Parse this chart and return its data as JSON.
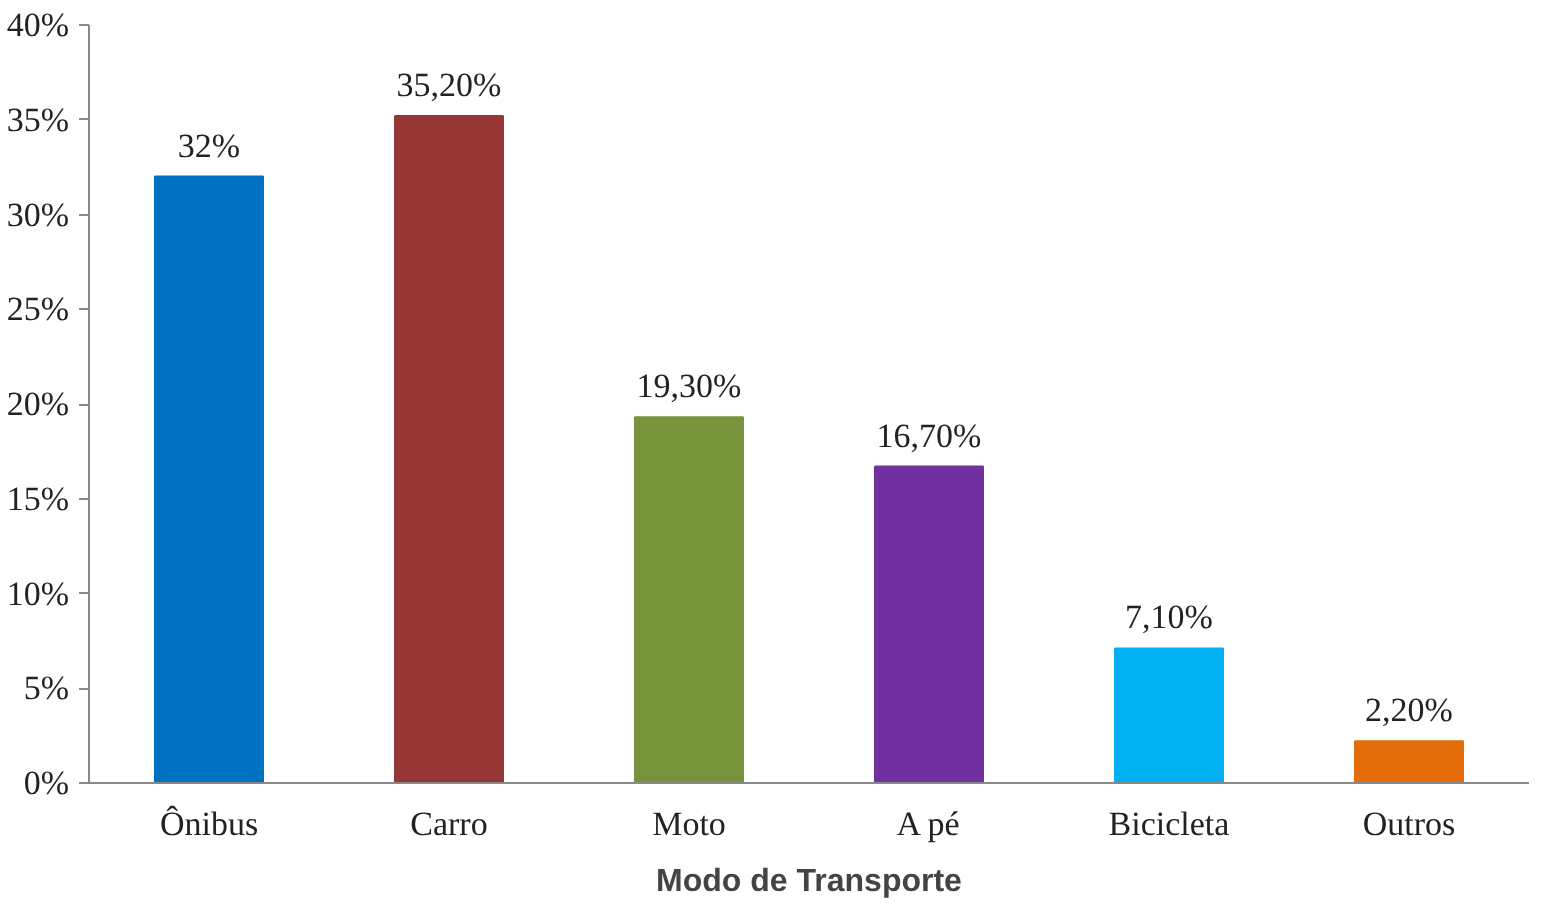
{
  "chart_data": {
    "type": "bar",
    "xlabel": "Modo de Transporte",
    "categories": [
      "Ônibus",
      "Carro",
      "Moto",
      "A pé",
      "Bicicleta",
      "Outros"
    ],
    "values": [
      32,
      35.2,
      19.3,
      16.7,
      7.1,
      2.2
    ],
    "colors": [
      "#0070c0",
      "#953735",
      "#77933c",
      "#7030a0",
      "#00b0f0",
      "#e36c09"
    ],
    "value_labels": [
      "32%",
      "35,20%",
      "19,30%",
      "16,70%",
      "7,10%",
      "2,20%"
    ],
    "ylim": [
      0,
      40
    ],
    "yticks": [
      {
        "value": 0,
        "label": "0%"
      },
      {
        "value": 5,
        "label": "5%"
      },
      {
        "value": 10,
        "label": "10%"
      },
      {
        "value": 15,
        "label": "15%"
      },
      {
        "value": 20,
        "label": "20%"
      },
      {
        "value": 25,
        "label": "25%"
      },
      {
        "value": 30,
        "label": "30%"
      },
      {
        "value": 35,
        "label": "35%"
      },
      {
        "value": 40,
        "label": "40%"
      }
    ],
    "grid": false
  }
}
